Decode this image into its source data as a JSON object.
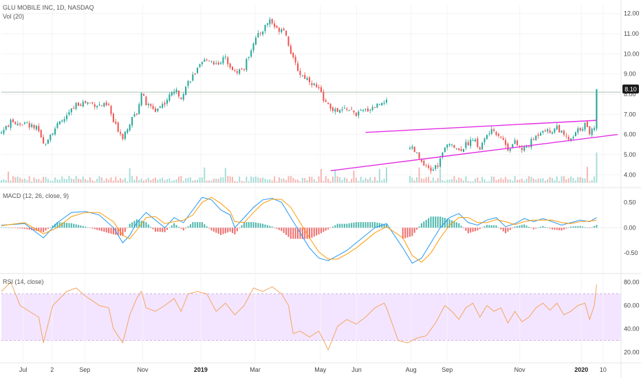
{
  "header": {
    "symbol_line": "GLU MOBILE INC, 1D, NASDAQ",
    "volume_label": "Vol (20)"
  },
  "price_badge": "8.10",
  "macd_label": "MACD (12, 26, close, 9)",
  "rsi_label": "RSI (14, close)",
  "colors": {
    "up": "#26a69a",
    "down": "#ef5350",
    "wedge": "#e32ee3",
    "macd_line": "#2196f3",
    "signal_line": "#ff9800",
    "rsi_line": "#f4a460",
    "rsi_band": "#f3e5ff",
    "badge_bg": "#1b1b1b"
  },
  "chart_data": [
    {
      "type": "candlestick",
      "title": "GLU MOBILE INC, 1D, NASDAQ",
      "ylim": [
        3.6,
        12.4
      ],
      "y_ticks": [
        "12.00",
        "11.00",
        "10.00",
        "9.00",
        "8.00",
        "7.00",
        "6.00",
        "5.00",
        "4.00"
      ],
      "x_ticks": [
        "Jul",
        "2",
        "Sep",
        "Nov",
        "2019",
        "Mar",
        "May",
        "Jun",
        "Aug",
        "Sep",
        "Nov",
        "2020",
        "10"
      ],
      "last_price": 8.1,
      "close_path": [
        [
          0,
          6.1
        ],
        [
          4,
          6.6
        ],
        [
          10,
          6.55
        ],
        [
          15,
          6.3
        ],
        [
          18,
          5.5
        ],
        [
          22,
          6.2
        ],
        [
          28,
          6.9
        ],
        [
          32,
          7.5
        ],
        [
          36,
          7.6
        ],
        [
          42,
          7.45
        ],
        [
          46,
          7.4
        ],
        [
          48,
          6.6
        ],
        [
          52,
          5.9
        ],
        [
          55,
          6.6
        ],
        [
          58,
          7.1
        ],
        [
          60,
          8.1
        ],
        [
          62,
          7.5
        ],
        [
          66,
          7.2
        ],
        [
          70,
          7.6
        ],
        [
          74,
          8.2
        ],
        [
          77,
          7.9
        ],
        [
          80,
          8.6
        ],
        [
          84,
          9.2
        ],
        [
          88,
          9.8
        ],
        [
          92,
          9.5
        ],
        [
          96,
          9.8
        ],
        [
          100,
          9.1
        ],
        [
          104,
          9.3
        ],
        [
          108,
          10.6
        ],
        [
          112,
          11.2
        ],
        [
          115,
          11.7
        ],
        [
          118,
          11.2
        ],
        [
          121,
          11.3
        ],
        [
          123,
          10.5
        ],
        [
          125,
          9.7
        ],
        [
          128,
          9.0
        ],
        [
          132,
          8.7
        ],
        [
          136,
          8.2
        ],
        [
          140,
          7.4
        ],
        [
          144,
          7.1
        ],
        [
          148,
          7.3
        ],
        [
          152,
          7.0
        ],
        [
          156,
          7.2
        ],
        [
          160,
          7.4
        ],
        [
          164,
          7.7
        ],
        [
          165,
          7.6
        ]
      ],
      "gap_after_index": 165,
      "close_path_2": [
        [
          175,
          5.4
        ],
        [
          178,
          5.0
        ],
        [
          181,
          4.4
        ],
        [
          184,
          4.2
        ],
        [
          187,
          4.5
        ],
        [
          190,
          5.3
        ],
        [
          193,
          5.6
        ],
        [
          196,
          5.2
        ],
        [
          199,
          5.5
        ],
        [
          202,
          5.8
        ],
        [
          205,
          5.3
        ],
        [
          208,
          6.0
        ],
        [
          211,
          6.2
        ],
        [
          214,
          5.9
        ],
        [
          217,
          5.3
        ],
        [
          220,
          5.6
        ],
        [
          223,
          5.2
        ],
        [
          226,
          5.5
        ],
        [
          229,
          5.9
        ],
        [
          232,
          6.3
        ],
        [
          235,
          6.1
        ],
        [
          238,
          6.4
        ],
        [
          241,
          5.9
        ],
        [
          244,
          5.7
        ],
        [
          247,
          6.2
        ],
        [
          250,
          6.5
        ],
        [
          252,
          6.1
        ],
        [
          254,
          6.4
        ],
        [
          255,
          8.1
        ]
      ],
      "total_bars": 265,
      "wedge_upper": [
        [
          156,
          6.1
        ],
        [
          255,
          6.7
        ]
      ],
      "wedge_lower": [
        [
          141,
          4.2
        ],
        [
          264,
          6.0
        ]
      ],
      "highlight_line": 8.1
    },
    {
      "type": "line",
      "title": "MACD (12, 26, close, 9)",
      "ylim": [
        -0.85,
        0.75
      ],
      "y_ticks": [
        "0.50",
        "0.00",
        "-0.50"
      ],
      "macd_path": [
        [
          0,
          0.05
        ],
        [
          10,
          0.08
        ],
        [
          18,
          -0.2
        ],
        [
          24,
          0.1
        ],
        [
          30,
          0.3
        ],
        [
          36,
          0.32
        ],
        [
          42,
          0.25
        ],
        [
          48,
          0.0
        ],
        [
          52,
          -0.3
        ],
        [
          55,
          -0.15
        ],
        [
          58,
          0.1
        ],
        [
          62,
          0.3
        ],
        [
          66,
          0.15
        ],
        [
          70,
          0.0
        ],
        [
          74,
          0.2
        ],
        [
          78,
          0.1
        ],
        [
          82,
          0.35
        ],
        [
          86,
          0.6
        ],
        [
          90,
          0.55
        ],
        [
          94,
          0.35
        ],
        [
          98,
          0.25
        ],
        [
          100,
          0.0
        ],
        [
          104,
          0.2
        ],
        [
          108,
          0.4
        ],
        [
          112,
          0.55
        ],
        [
          116,
          0.58
        ],
        [
          120,
          0.5
        ],
        [
          124,
          0.2
        ],
        [
          128,
          -0.1
        ],
        [
          132,
          -0.4
        ],
        [
          136,
          -0.6
        ],
        [
          140,
          -0.65
        ],
        [
          144,
          -0.55
        ],
        [
          148,
          -0.45
        ],
        [
          152,
          -0.3
        ],
        [
          156,
          -0.15
        ],
        [
          160,
          0.0
        ],
        [
          165,
          0.08
        ],
        [
          172,
          -0.4
        ],
        [
          176,
          -0.7
        ],
        [
          180,
          -0.6
        ],
        [
          184,
          -0.3
        ],
        [
          188,
          0.0
        ],
        [
          192,
          0.2
        ],
        [
          196,
          0.28
        ],
        [
          200,
          0.1
        ],
        [
          204,
          0.05
        ],
        [
          208,
          0.15
        ],
        [
          212,
          0.2
        ],
        [
          216,
          0.02
        ],
        [
          220,
          0.08
        ],
        [
          224,
          0.18
        ],
        [
          228,
          0.12
        ],
        [
          232,
          0.18
        ],
        [
          236,
          0.12
        ],
        [
          240,
          0.05
        ],
        [
          244,
          0.1
        ],
        [
          248,
          0.15
        ],
        [
          252,
          0.12
        ],
        [
          255,
          0.2
        ]
      ],
      "signal_path": [
        [
          0,
          0.04
        ],
        [
          10,
          0.1
        ],
        [
          18,
          -0.12
        ],
        [
          24,
          0.0
        ],
        [
          30,
          0.22
        ],
        [
          36,
          0.3
        ],
        [
          42,
          0.3
        ],
        [
          48,
          0.12
        ],
        [
          52,
          -0.15
        ],
        [
          55,
          -0.22
        ],
        [
          58,
          -0.05
        ],
        [
          62,
          0.2
        ],
        [
          66,
          0.22
        ],
        [
          70,
          0.08
        ],
        [
          74,
          0.12
        ],
        [
          78,
          0.15
        ],
        [
          82,
          0.25
        ],
        [
          86,
          0.5
        ],
        [
          90,
          0.6
        ],
        [
          94,
          0.48
        ],
        [
          98,
          0.32
        ],
        [
          100,
          0.12
        ],
        [
          104,
          0.1
        ],
        [
          108,
          0.3
        ],
        [
          112,
          0.48
        ],
        [
          116,
          0.56
        ],
        [
          120,
          0.56
        ],
        [
          124,
          0.4
        ],
        [
          128,
          0.1
        ],
        [
          132,
          -0.2
        ],
        [
          136,
          -0.48
        ],
        [
          140,
          -0.62
        ],
        [
          144,
          -0.62
        ],
        [
          148,
          -0.52
        ],
        [
          152,
          -0.4
        ],
        [
          156,
          -0.25
        ],
        [
          160,
          -0.1
        ],
        [
          165,
          0.02
        ],
        [
          172,
          -0.2
        ],
        [
          176,
          -0.55
        ],
        [
          180,
          -0.68
        ],
        [
          184,
          -0.5
        ],
        [
          188,
          -0.2
        ],
        [
          192,
          0.05
        ],
        [
          196,
          0.2
        ],
        [
          200,
          0.2
        ],
        [
          204,
          0.1
        ],
        [
          208,
          0.1
        ],
        [
          212,
          0.16
        ],
        [
          216,
          0.12
        ],
        [
          220,
          0.06
        ],
        [
          224,
          0.12
        ],
        [
          228,
          0.15
        ],
        [
          232,
          0.15
        ],
        [
          236,
          0.15
        ],
        [
          240,
          0.1
        ],
        [
          244,
          0.08
        ],
        [
          248,
          0.12
        ],
        [
          252,
          0.13
        ],
        [
          255,
          0.15
        ]
      ]
    },
    {
      "type": "line",
      "title": "RSI (14, close)",
      "ylim": [
        12,
        85
      ],
      "y_ticks": [
        "80.00",
        "60.00",
        "40.00",
        "20.00"
      ],
      "band": [
        30,
        70
      ],
      "rsi_path": [
        [
          0,
          72
        ],
        [
          4,
          80
        ],
        [
          8,
          60
        ],
        [
          12,
          55
        ],
        [
          16,
          50
        ],
        [
          18,
          28
        ],
        [
          22,
          60
        ],
        [
          28,
          72
        ],
        [
          32,
          75
        ],
        [
          36,
          68
        ],
        [
          42,
          60
        ],
        [
          46,
          58
        ],
        [
          48,
          40
        ],
        [
          52,
          28
        ],
        [
          55,
          52
        ],
        [
          58,
          66
        ],
        [
          60,
          72
        ],
        [
          62,
          58
        ],
        [
          66,
          55
        ],
        [
          70,
          60
        ],
        [
          74,
          66
        ],
        [
          77,
          55
        ],
        [
          80,
          70
        ],
        [
          84,
          72
        ],
        [
          88,
          70
        ],
        [
          92,
          55
        ],
        [
          96,
          62
        ],
        [
          100,
          52
        ],
        [
          104,
          60
        ],
        [
          108,
          75
        ],
        [
          112,
          72
        ],
        [
          116,
          76
        ],
        [
          120,
          70
        ],
        [
          123,
          60
        ],
        [
          125,
          36
        ],
        [
          128,
          38
        ],
        [
          132,
          33
        ],
        [
          136,
          38
        ],
        [
          140,
          22
        ],
        [
          144,
          42
        ],
        [
          148,
          48
        ],
        [
          152,
          44
        ],
        [
          156,
          50
        ],
        [
          160,
          58
        ],
        [
          164,
          62
        ],
        [
          165,
          58
        ],
        [
          170,
          30
        ],
        [
          174,
          28
        ],
        [
          178,
          32
        ],
        [
          182,
          34
        ],
        [
          186,
          45
        ],
        [
          190,
          60
        ],
        [
          193,
          55
        ],
        [
          196,
          48
        ],
        [
          199,
          58
        ],
        [
          202,
          62
        ],
        [
          205,
          50
        ],
        [
          208,
          60
        ],
        [
          211,
          55
        ],
        [
          214,
          58
        ],
        [
          217,
          45
        ],
        [
          220,
          55
        ],
        [
          223,
          46
        ],
        [
          226,
          50
        ],
        [
          229,
          58
        ],
        [
          232,
          62
        ],
        [
          235,
          56
        ],
        [
          238,
          62
        ],
        [
          241,
          52
        ],
        [
          244,
          55
        ],
        [
          247,
          60
        ],
        [
          250,
          62
        ],
        [
          252,
          48
        ],
        [
          254,
          60
        ],
        [
          255,
          78
        ]
      ]
    }
  ]
}
